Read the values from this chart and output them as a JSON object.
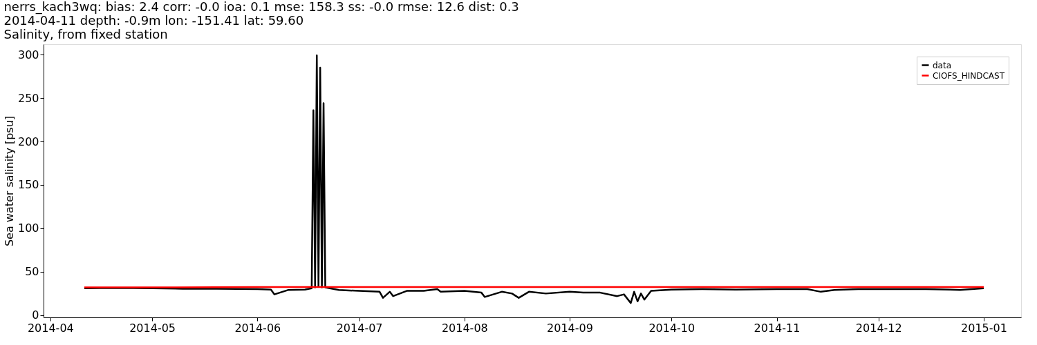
{
  "chart_data": {
    "type": "line",
    "title": "nerrs_kach3wq: bias: 2.4  corr: -0.0  ioa: 0.1  mse: 158.3  ss: -0.0  rmse: 12.6  dist: 0.3",
    "subtitle": [
      "2014-04-11 depth: -0.9m lon: -151.41 lat: 59.60",
      "Salinity, from fixed station"
    ],
    "ylabel": "Sea water salinity [psu]",
    "xlim": [
      "2014-03-30",
      "2015-01-12"
    ],
    "xticks": [
      {
        "value": "2014-04-01",
        "label": "2014-04"
      },
      {
        "value": "2014-05-01",
        "label": "2014-05"
      },
      {
        "value": "2014-06-01",
        "label": "2014-06"
      },
      {
        "value": "2014-07-01",
        "label": "2014-07"
      },
      {
        "value": "2014-08-01",
        "label": "2014-08"
      },
      {
        "value": "2014-09-01",
        "label": "2014-09"
      },
      {
        "value": "2014-10-01",
        "label": "2014-10"
      },
      {
        "value": "2014-11-01",
        "label": "2014-11"
      },
      {
        "value": "2014-12-01",
        "label": "2014-12"
      },
      {
        "value": "2015-01-01",
        "label": "2015-01"
      }
    ],
    "ylim": [
      -2.5,
      312
    ],
    "yticks": [
      0,
      50,
      100,
      150,
      200,
      250,
      300
    ],
    "grid": false,
    "legend": "top right",
    "line_style": "solid",
    "marker": "none",
    "series": [
      {
        "name": "data",
        "color": "#000000",
        "x": [
          "2014-04-11",
          "2014-04-20",
          "2014-05-01",
          "2014-05-10",
          "2014-05-20",
          "2014-06-01",
          "2014-06-05",
          "2014-06-06",
          "2014-06-10",
          "2014-06-15",
          "2014-06-17",
          "2014-06-17T12:00",
          "2014-06-18",
          "2014-06-18T12:00",
          "2014-06-19",
          "2014-06-19T12:00",
          "2014-06-20",
          "2014-06-20T12:00",
          "2014-06-21",
          "2014-06-25",
          "2014-07-01",
          "2014-07-07",
          "2014-07-08",
          "2014-07-10",
          "2014-07-11",
          "2014-07-15",
          "2014-07-20",
          "2014-07-24",
          "2014-07-25",
          "2014-08-01",
          "2014-08-06",
          "2014-08-07",
          "2014-08-12",
          "2014-08-15",
          "2014-08-17",
          "2014-08-20",
          "2014-08-25",
          "2014-09-01",
          "2014-09-05",
          "2014-09-10",
          "2014-09-15",
          "2014-09-17",
          "2014-09-19",
          "2014-09-20",
          "2014-09-21",
          "2014-09-22",
          "2014-09-23",
          "2014-09-25",
          "2014-10-01",
          "2014-10-10",
          "2014-10-20",
          "2014-11-01",
          "2014-11-10",
          "2014-11-14",
          "2014-11-18",
          "2014-11-25",
          "2014-12-05",
          "2014-12-15",
          "2014-12-22",
          "2014-12-25",
          "2015-01-01"
        ],
        "values": [
          31,
          31.5,
          31,
          30.5,
          30.5,
          30,
          29.5,
          24,
          29,
          29.5,
          31,
          236,
          32,
          299,
          33,
          285,
          32,
          244,
          32,
          29,
          28,
          27,
          20,
          27,
          22,
          28,
          28,
          30,
          27,
          28,
          26,
          21,
          27,
          25,
          20,
          27,
          25,
          27,
          26,
          26,
          22,
          24,
          14,
          27,
          16,
          25,
          18,
          28,
          29.5,
          30,
          29.5,
          30,
          30,
          27,
          29,
          30,
          30,
          30,
          29.5,
          29,
          31
        ]
      },
      {
        "name": "CIOFS_HINDCAST",
        "color": "#ff0000",
        "x": [
          "2014-04-11",
          "2014-05-01",
          "2014-06-01",
          "2014-07-01",
          "2014-08-01",
          "2014-09-01",
          "2014-10-01",
          "2014-11-01",
          "2014-12-01",
          "2015-01-01"
        ],
        "values": [
          32,
          32,
          32.5,
          32.5,
          32.5,
          32.5,
          32.5,
          32.5,
          32.5,
          32.5
        ]
      }
    ]
  }
}
